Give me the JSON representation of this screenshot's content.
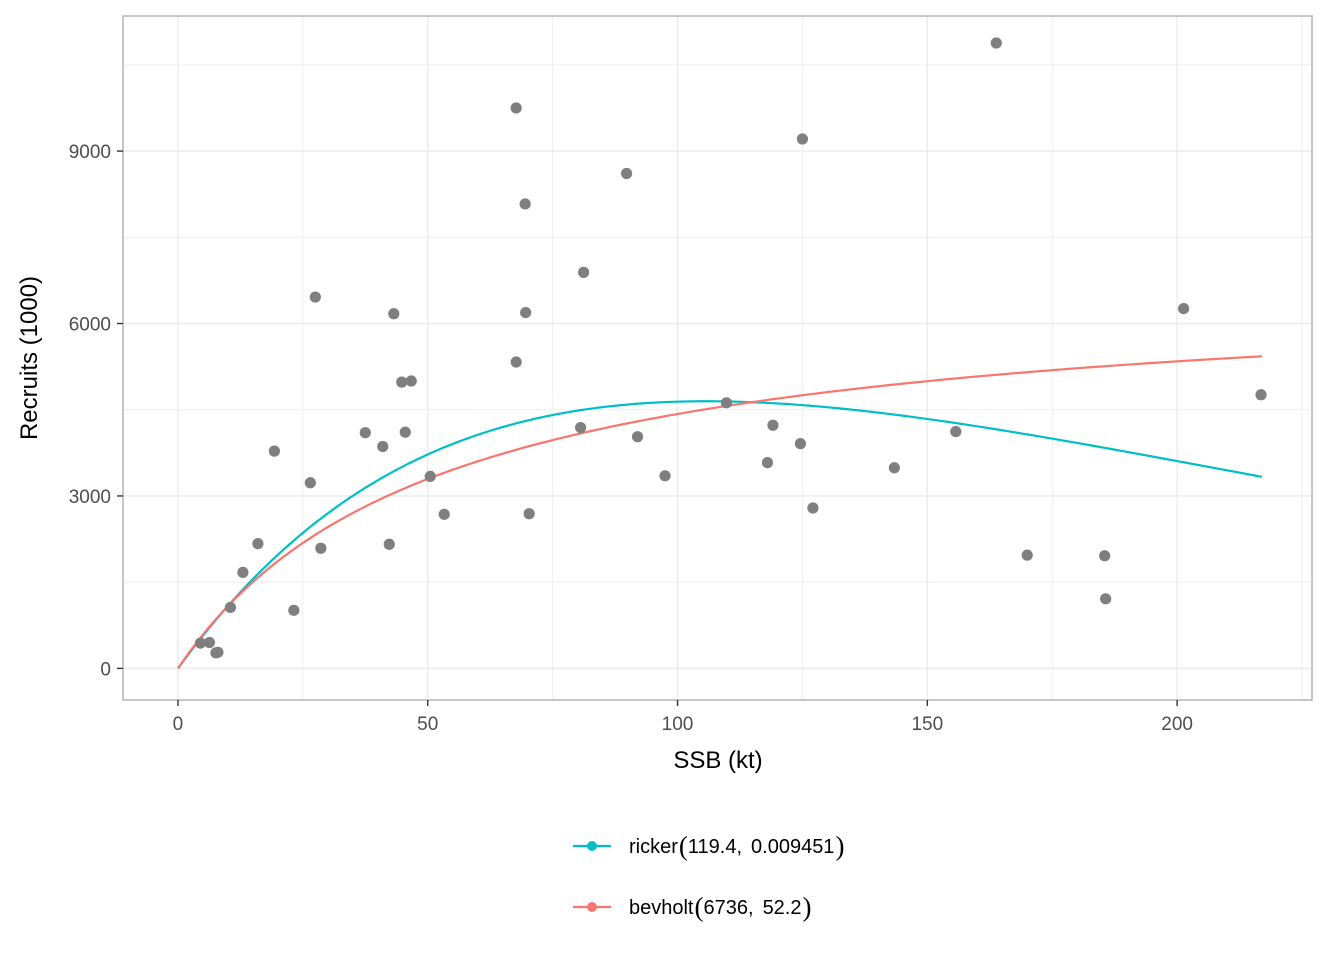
{
  "chart_data": {
    "type": "scatter",
    "xlabel": "SSB (kt)",
    "ylabel": "Recruits (1000)",
    "xlim": [
      -11,
      227
    ],
    "ylim": [
      -550,
      11350
    ],
    "x_ticks": [
      0,
      50,
      100,
      150,
      200
    ],
    "y_ticks": [
      0,
      3000,
      6000,
      9000
    ],
    "grid": true,
    "legend_position": "bottom",
    "colors": {
      "points": "#7f7f7f",
      "ricker": "#00bfc4",
      "bevholt": "#f8766d",
      "grid": "#ebebeb",
      "panel_border": "#b3b3b3"
    },
    "observations": [
      [
        4.5,
        440
      ],
      [
        6.3,
        450
      ],
      [
        7.6,
        270
      ],
      [
        8.0,
        280
      ],
      [
        10.5,
        1060
      ],
      [
        13.0,
        1670
      ],
      [
        16.0,
        2170
      ],
      [
        19.3,
        3780
      ],
      [
        23.2,
        1010
      ],
      [
        26.5,
        3230
      ],
      [
        27.5,
        6460
      ],
      [
        28.6,
        2090
      ],
      [
        37.5,
        4100
      ],
      [
        41.0,
        3860
      ],
      [
        42.3,
        2160
      ],
      [
        43.2,
        6170
      ],
      [
        44.8,
        4980
      ],
      [
        45.5,
        4110
      ],
      [
        46.7,
        5000
      ],
      [
        50.5,
        3340
      ],
      [
        53.3,
        2680
      ],
      [
        67.7,
        9750
      ],
      [
        67.7,
        5330
      ],
      [
        69.5,
        8080
      ],
      [
        69.6,
        6190
      ],
      [
        70.3,
        2690
      ],
      [
        80.6,
        4190
      ],
      [
        81.2,
        6890
      ],
      [
        89.8,
        8610
      ],
      [
        92.0,
        4030
      ],
      [
        97.5,
        3350
      ],
      [
        109.8,
        4620
      ],
      [
        118.0,
        3580
      ],
      [
        119.1,
        4230
      ],
      [
        124.6,
        3910
      ],
      [
        125.0,
        9210
      ],
      [
        127.1,
        2790
      ],
      [
        143.4,
        3490
      ],
      [
        155.7,
        4120
      ],
      [
        163.8,
        10880
      ],
      [
        170.0,
        1970
      ],
      [
        185.5,
        1960
      ],
      [
        185.7,
        1210
      ],
      [
        201.3,
        6260
      ],
      [
        216.8,
        4760
      ]
    ],
    "series": [
      {
        "name": "ricker",
        "label": "ricker",
        "params": [
          119.4,
          0.009451
        ],
        "params_text": [
          "119.4,",
          "0.009451"
        ],
        "model": "ricker",
        "x_range": [
          0,
          217
        ]
      },
      {
        "name": "bevholt",
        "label": "bevholt",
        "params": [
          6736,
          52.2
        ],
        "params_text": [
          "6736,",
          "52.2"
        ],
        "model": "bevholt",
        "x_range": [
          0,
          217
        ]
      }
    ]
  }
}
